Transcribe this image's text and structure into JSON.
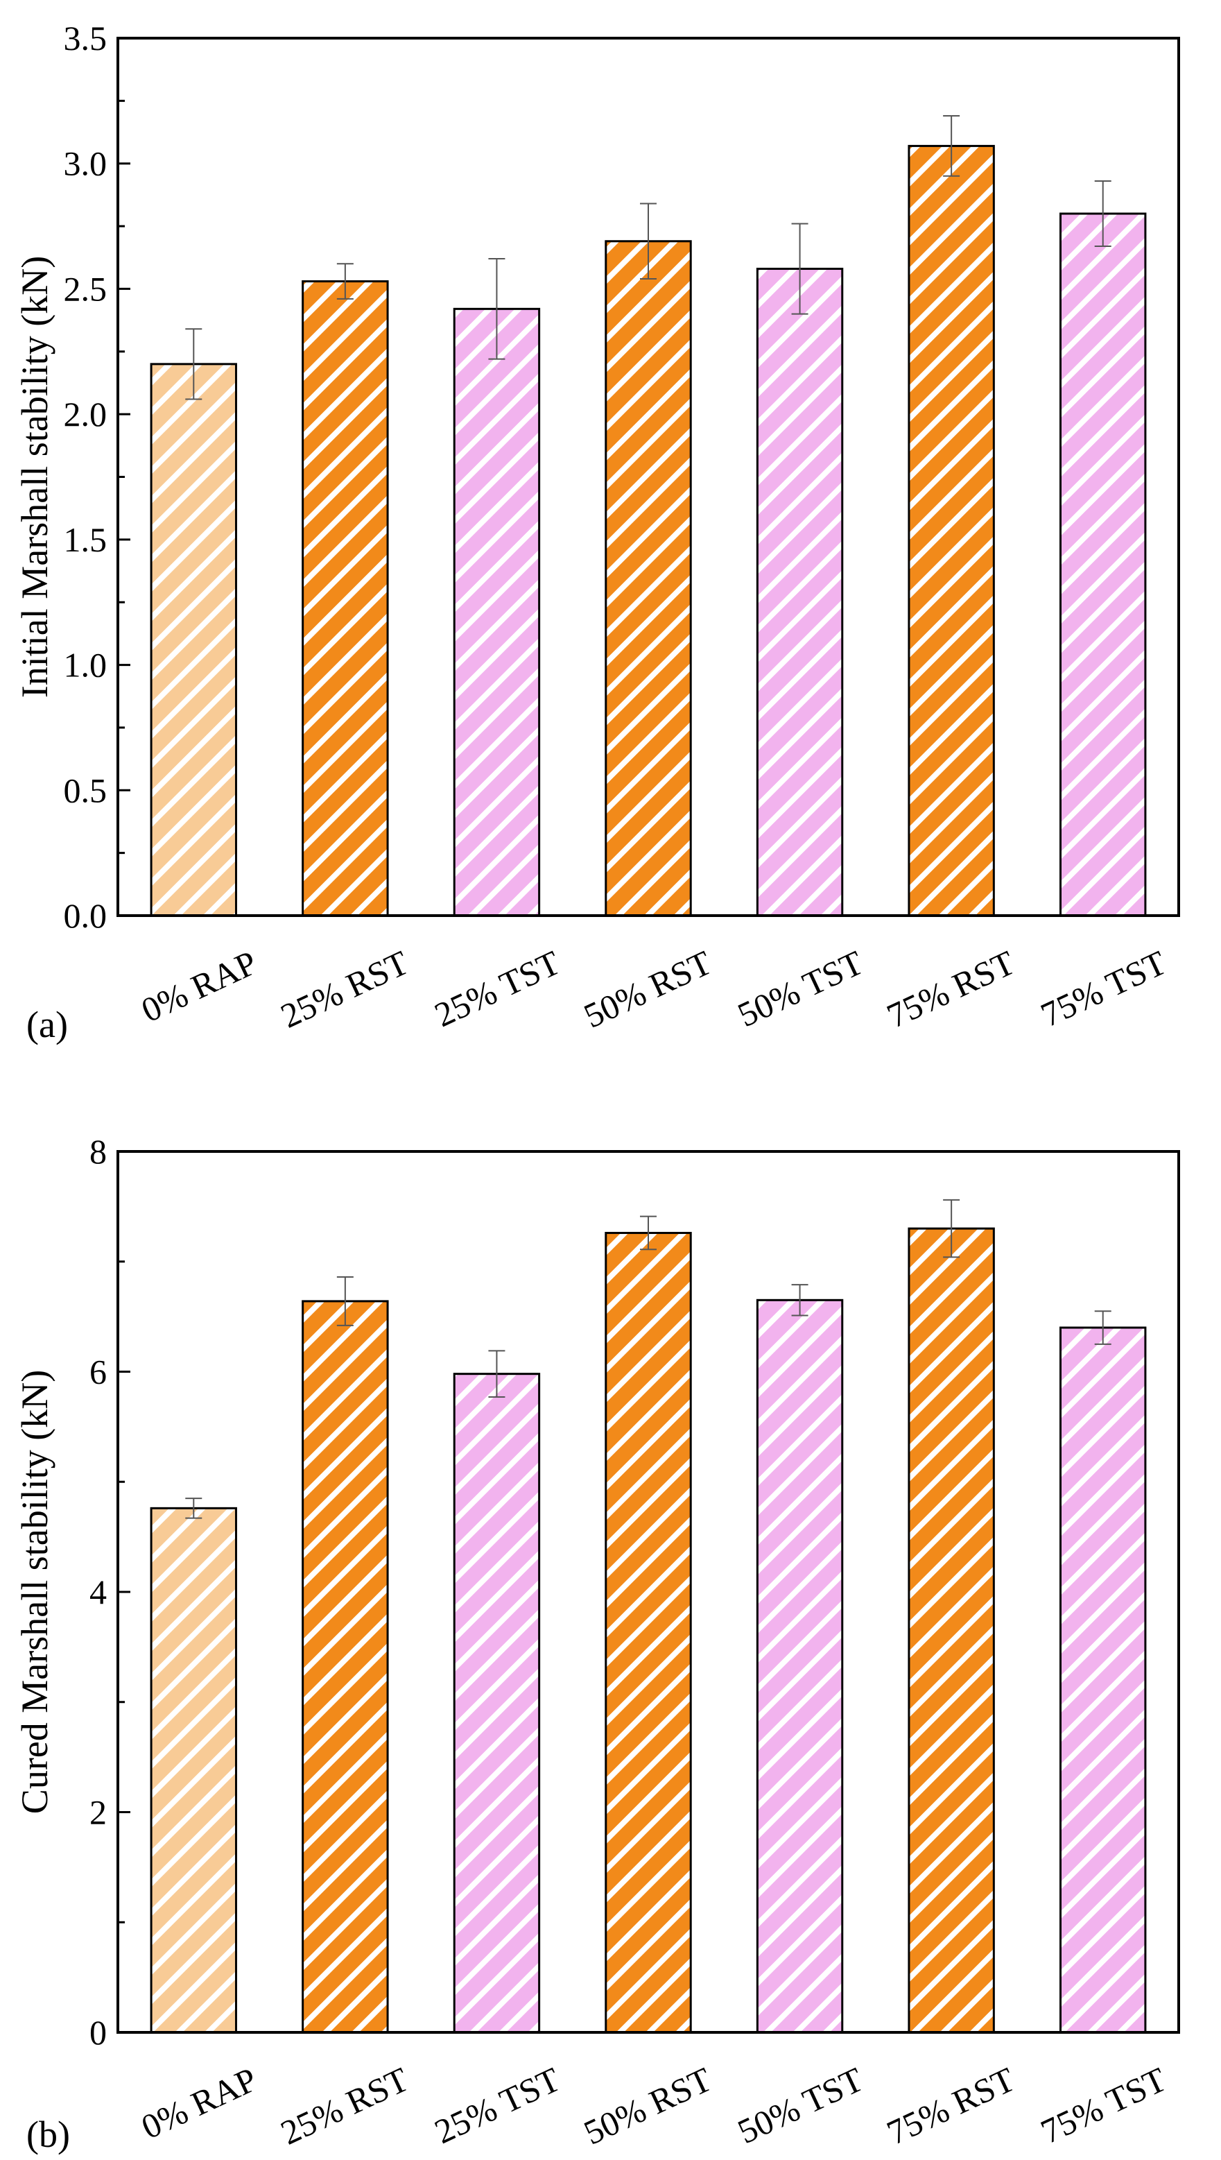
{
  "colors": {
    "rap": "#F8CB96",
    "rst": "#F28A1A",
    "tst": "#F2B3EE",
    "hatch": "#FFFFFF",
    "axis": "#000000",
    "errorbar": "#555555"
  },
  "chart_data": [
    {
      "type": "bar",
      "panel_label": "(a)",
      "title": "",
      "xlabel": "",
      "ylabel": "Initial Marshall stability (kN)",
      "ylim": [
        0,
        3.5
      ],
      "yticks": [
        "0.0",
        "0.5",
        "1.0",
        "1.5",
        "2.0",
        "2.5",
        "3.0",
        "3.5"
      ],
      "ytick_values": [
        0,
        0.5,
        1.0,
        1.5,
        2.0,
        2.5,
        3.0,
        3.5
      ],
      "categories": [
        "0% RAP",
        "25% RST",
        "25% TST",
        "50% RST",
        "50% TST",
        "75% RST",
        "75% TST"
      ],
      "values": [
        2.2,
        2.53,
        2.42,
        2.69,
        2.58,
        3.07,
        2.8
      ],
      "errors": [
        0.14,
        0.07,
        0.2,
        0.15,
        0.18,
        0.12,
        0.13
      ],
      "groups": [
        "rap",
        "rst",
        "tst",
        "rst",
        "tst",
        "rst",
        "tst"
      ]
    },
    {
      "type": "bar",
      "panel_label": "(b)",
      "title": "",
      "xlabel": "",
      "ylabel": "Cured Marshall stability (kN)",
      "ylim": [
        0,
        8
      ],
      "yticks": [
        "0",
        "2",
        "4",
        "6",
        "8"
      ],
      "ytick_values": [
        0,
        2,
        4,
        6,
        8
      ],
      "categories": [
        "0% RAP",
        "25% RST",
        "25% TST",
        "50% RST",
        "50% TST",
        "75% RST",
        "75% TST"
      ],
      "values": [
        4.76,
        6.64,
        5.98,
        7.26,
        6.65,
        7.3,
        6.4
      ],
      "errors": [
        0.09,
        0.22,
        0.21,
        0.15,
        0.14,
        0.26,
        0.15
      ],
      "groups": [
        "rap",
        "rst",
        "tst",
        "rst",
        "tst",
        "rst",
        "tst"
      ]
    }
  ]
}
